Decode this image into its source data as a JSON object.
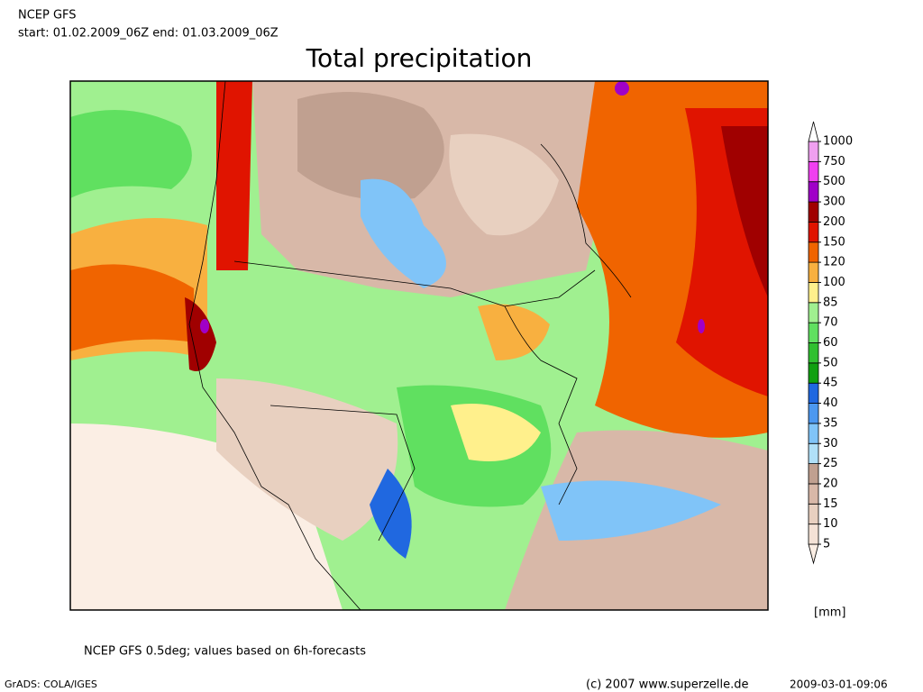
{
  "header": {
    "model": "NCEP GFS",
    "period": "start: 01.02.2009_06Z end: 01.03.2009_06Z",
    "title": "Total precipitation"
  },
  "legend": {
    "levels": [
      5,
      10,
      15,
      20,
      25,
      30,
      35,
      40,
      45,
      50,
      60,
      70,
      85,
      100,
      120,
      150,
      200,
      300,
      500,
      750,
      1000
    ],
    "colors": [
      "#fbeee4",
      "#f4e2d6",
      "#e8d0c0",
      "#d8b8a8",
      "#c0a090",
      "#b0e0f8",
      "#80c4f8",
      "#4c98f0",
      "#2068e0",
      "#10a010",
      "#30c030",
      "#60e060",
      "#a0f090",
      "#fff08c",
      "#f8b040",
      "#f06400",
      "#e01400",
      "#a00000",
      "#a000c8",
      "#f040f0",
      "#f0a0f0",
      "#ffffff"
    ],
    "unit": "[mm]"
  },
  "footer": {
    "note": "NCEP GFS 0.5deg; values based on 6h-forecasts",
    "software": "GrADS: COLA/IGES",
    "copyright": "(c) 2007 www.superzelle.de",
    "timestamp": "2009-03-01-09:06"
  }
}
